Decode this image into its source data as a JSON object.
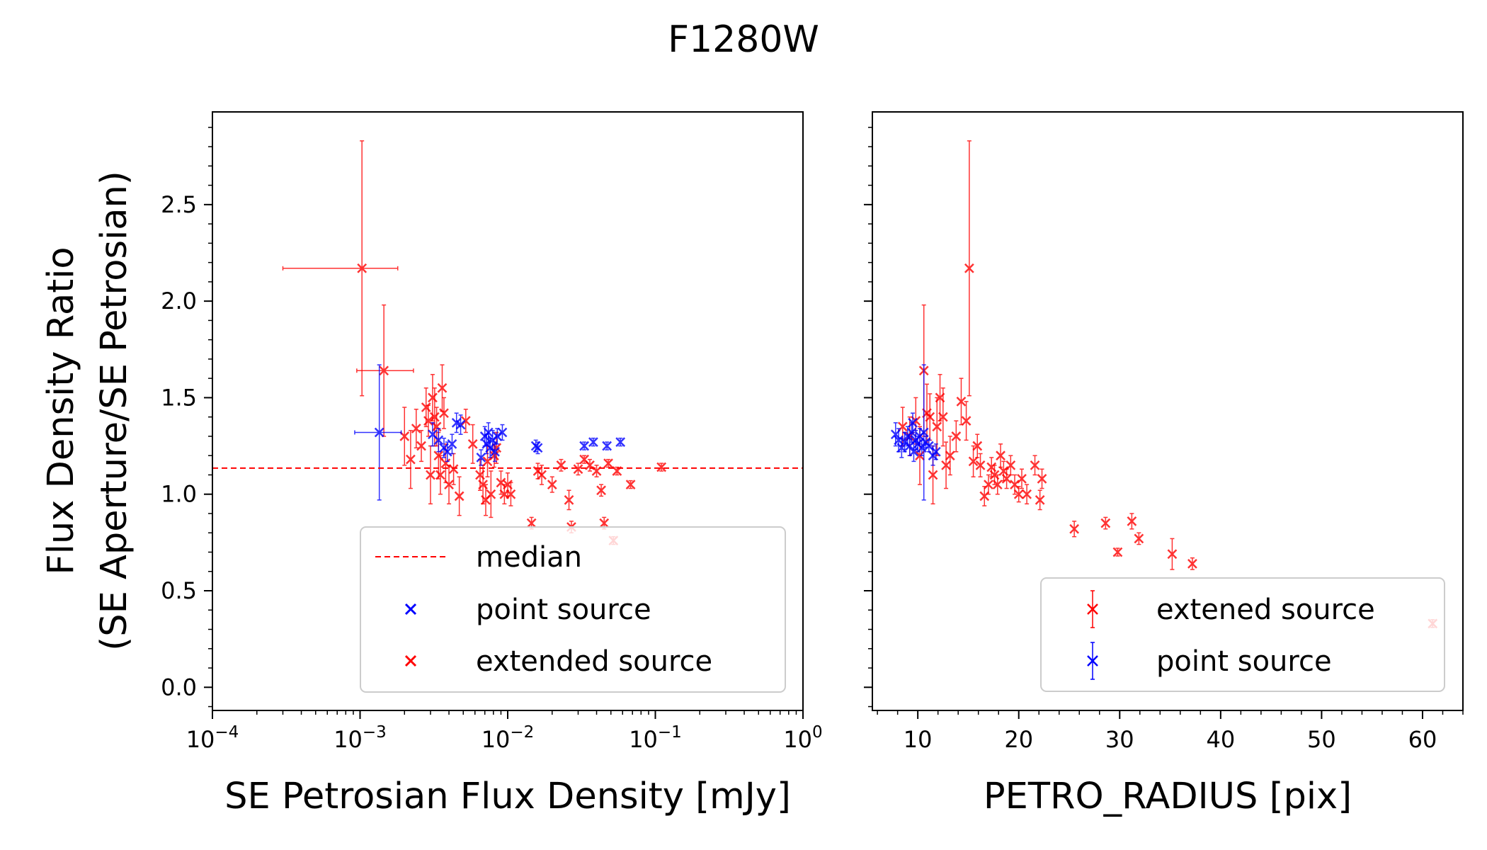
{
  "figure": {
    "title": "F1280W"
  },
  "colors": {
    "extended": "#ff0000",
    "point": "#0000ff",
    "median": "#ff0000",
    "axis": "#000000"
  },
  "chart_data": [
    {
      "type": "scatter",
      "xlabel": "SE Petrosian Flux Density [mJy]",
      "ylabel_line1": "Flux Density Ratio",
      "ylabel_line2": "(SE Aperture/SE Petrosian)",
      "x_scale": "log",
      "xlim": [
        0.0001,
        1
      ],
      "ylim": [
        -0.12,
        2.98
      ],
      "x_ticks": [
        {
          "value": 0.0001,
          "base": "10",
          "exp": "−4"
        },
        {
          "value": 0.001,
          "base": "10",
          "exp": "−3"
        },
        {
          "value": 0.01,
          "base": "10",
          "exp": "−2"
        },
        {
          "value": 0.1,
          "base": "10",
          "exp": "−1"
        },
        {
          "value": 1,
          "base": "10",
          "exp": "0"
        }
      ],
      "y_ticks": [
        "0.0",
        "0.5",
        "1.0",
        "1.5",
        "2.0",
        "2.5"
      ],
      "median": 1.135,
      "legend": {
        "placement": "lower-right",
        "entries": [
          {
            "label": "median",
            "marker": "dashed-line",
            "color": "#ff0000"
          },
          {
            "label": "point source",
            "marker": "x",
            "color": "#0000ff"
          },
          {
            "label": "extended source",
            "marker": "x",
            "color": "#ff0000"
          }
        ]
      },
      "series": [
        {
          "name": "point source",
          "color": "#0000ff",
          "points": [
            {
              "x": 0.00135,
              "y": 1.32,
              "yerr": 0.35,
              "xlo": 0.00092,
              "xhi": 0.0019
            },
            {
              "x": 0.0031,
              "y": 1.31,
              "yerr": 0.06
            },
            {
              "x": 0.0034,
              "y": 1.28,
              "yerr": 0.06
            },
            {
              "x": 0.0037,
              "y": 1.24,
              "yerr": 0.05
            },
            {
              "x": 0.0039,
              "y": 1.22,
              "yerr": 0.05
            },
            {
              "x": 0.0042,
              "y": 1.26,
              "yerr": 0.05
            },
            {
              "x": 0.0045,
              "y": 1.37,
              "yerr": 0.05
            },
            {
              "x": 0.0048,
              "y": 1.36,
              "yerr": 0.05
            },
            {
              "x": 0.0066,
              "y": 1.19,
              "yerr": 0.04
            },
            {
              "x": 0.007,
              "y": 1.3,
              "yerr": 0.05
            },
            {
              "x": 0.0072,
              "y": 1.26,
              "yerr": 0.05
            },
            {
              "x": 0.0074,
              "y": 1.32,
              "yerr": 0.05
            },
            {
              "x": 0.0076,
              "y": 1.24,
              "yerr": 0.05
            },
            {
              "x": 0.0079,
              "y": 1.28,
              "yerr": 0.05
            },
            {
              "x": 0.0082,
              "y": 1.22,
              "yerr": 0.05
            },
            {
              "x": 0.0085,
              "y": 1.3,
              "yerr": 0.04
            },
            {
              "x": 0.0092,
              "y": 1.32,
              "yerr": 0.04
            },
            {
              "x": 0.0155,
              "y": 1.25,
              "yerr": 0.03
            },
            {
              "x": 0.016,
              "y": 1.24,
              "yerr": 0.03
            },
            {
              "x": 0.033,
              "y": 1.25,
              "yerr": 0.02
            },
            {
              "x": 0.038,
              "y": 1.27,
              "yerr": 0.02
            },
            {
              "x": 0.047,
              "y": 1.25,
              "yerr": 0.02
            },
            {
              "x": 0.058,
              "y": 1.27,
              "yerr": 0.02
            }
          ]
        },
        {
          "name": "extended source",
          "color": "#ff0000",
          "points": [
            {
              "x": 0.00103,
              "y": 2.17,
              "yerr": 0.66,
              "xlo": 0.0003,
              "xhi": 0.0018
            },
            {
              "x": 0.00145,
              "y": 1.64,
              "yerr": 0.34,
              "xlo": 0.00095,
              "xhi": 0.0023
            },
            {
              "x": 0.002,
              "y": 1.3,
              "yerr": 0.15
            },
            {
              "x": 0.0022,
              "y": 1.18,
              "yerr": 0.15
            },
            {
              "x": 0.0024,
              "y": 1.34,
              "yerr": 0.1
            },
            {
              "x": 0.0026,
              "y": 1.25,
              "yerr": 0.08
            },
            {
              "x": 0.0028,
              "y": 1.45,
              "yerr": 0.1
            },
            {
              "x": 0.0029,
              "y": 1.38,
              "yerr": 0.08
            },
            {
              "x": 0.003,
              "y": 1.1,
              "yerr": 0.15
            },
            {
              "x": 0.0031,
              "y": 1.5,
              "yerr": 0.12
            },
            {
              "x": 0.0032,
              "y": 1.4,
              "yerr": 0.15
            },
            {
              "x": 0.0033,
              "y": 1.35,
              "yerr": 0.1
            },
            {
              "x": 0.0034,
              "y": 1.2,
              "yerr": 0.12
            },
            {
              "x": 0.0035,
              "y": 1.1,
              "yerr": 0.1
            },
            {
              "x": 0.0036,
              "y": 1.55,
              "yerr": 0.12
            },
            {
              "x": 0.0037,
              "y": 1.42,
              "yerr": 0.08
            },
            {
              "x": 0.0038,
              "y": 1.16,
              "yerr": 0.1
            },
            {
              "x": 0.004,
              "y": 1.05,
              "yerr": 0.1
            },
            {
              "x": 0.0043,
              "y": 1.13,
              "yerr": 0.08
            },
            {
              "x": 0.0047,
              "y": 0.99,
              "yerr": 0.1
            },
            {
              "x": 0.0052,
              "y": 1.38,
              "yerr": 0.06
            },
            {
              "x": 0.0058,
              "y": 1.26,
              "yerr": 0.1
            },
            {
              "x": 0.0065,
              "y": 1.1,
              "yerr": 0.08
            },
            {
              "x": 0.0068,
              "y": 1.05,
              "yerr": 0.1
            },
            {
              "x": 0.0071,
              "y": 0.97,
              "yerr": 0.08
            },
            {
              "x": 0.0073,
              "y": 1.17,
              "yerr": 0.08
            },
            {
              "x": 0.0077,
              "y": 1.0,
              "yerr": 0.12
            },
            {
              "x": 0.0081,
              "y": 1.2,
              "yerr": 0.06
            },
            {
              "x": 0.0084,
              "y": 1.24,
              "yerr": 0.08
            },
            {
              "x": 0.009,
              "y": 1.06,
              "yerr": 0.06
            },
            {
              "x": 0.0095,
              "y": 1.0,
              "yerr": 0.05
            },
            {
              "x": 0.01,
              "y": 1.05,
              "yerr": 0.06
            },
            {
              "x": 0.0105,
              "y": 1.0,
              "yerr": 0.06
            },
            {
              "x": 0.0145,
              "y": 0.85,
              "yerr": 0.03
            },
            {
              "x": 0.016,
              "y": 1.12,
              "yerr": 0.04
            },
            {
              "x": 0.017,
              "y": 1.1,
              "yerr": 0.05
            },
            {
              "x": 0.02,
              "y": 1.05,
              "yerr": 0.04
            },
            {
              "x": 0.023,
              "y": 1.15,
              "yerr": 0.03
            },
            {
              "x": 0.026,
              "y": 0.97,
              "yerr": 0.05
            },
            {
              "x": 0.027,
              "y": 0.83,
              "yerr": 0.03
            },
            {
              "x": 0.03,
              "y": 1.13,
              "yerr": 0.03
            },
            {
              "x": 0.033,
              "y": 1.18,
              "yerr": 0.02
            },
            {
              "x": 0.036,
              "y": 1.15,
              "yerr": 0.03
            },
            {
              "x": 0.04,
              "y": 1.12,
              "yerr": 0.03
            },
            {
              "x": 0.043,
              "y": 1.02,
              "yerr": 0.03
            },
            {
              "x": 0.045,
              "y": 0.85,
              "yerr": 0.03
            },
            {
              "x": 0.048,
              "y": 1.16,
              "yerr": 0.02
            },
            {
              "x": 0.055,
              "y": 1.12,
              "yerr": 0.02
            },
            {
              "x": 0.068,
              "y": 1.05,
              "yerr": 0.02
            },
            {
              "x": 0.11,
              "y": 1.14,
              "yerr": 0.02
            },
            {
              "x": 0.052,
              "y": 0.76,
              "yerr": 0.02
            }
          ]
        }
      ]
    },
    {
      "type": "scatter",
      "xlabel": "PETRO_RADIUS [pix]",
      "x_scale": "linear",
      "xlim": [
        5.5,
        64
      ],
      "ylim": [
        -0.12,
        2.98
      ],
      "x_ticks": [
        "10",
        "20",
        "30",
        "40",
        "50",
        "60"
      ],
      "legend": {
        "placement": "lower-right",
        "entries": [
          {
            "label": "extened source",
            "marker": "x-errorbar",
            "color": "#ff0000"
          },
          {
            "label": "point source",
            "marker": "x-errorbar",
            "color": "#0000ff"
          }
        ]
      },
      "series": [
        {
          "name": "extened source",
          "color": "#ff0000",
          "points": [
            {
              "x": 8.5,
              "y": 1.35,
              "yerr": 0.1
            },
            {
              "x": 9.2,
              "y": 1.3,
              "yerr": 0.1
            },
            {
              "x": 9.8,
              "y": 1.38,
              "yerr": 0.12
            },
            {
              "x": 10.2,
              "y": 1.2,
              "yerr": 0.15
            },
            {
              "x": 10.6,
              "y": 1.64,
              "yerr": 0.34
            },
            {
              "x": 10.9,
              "y": 1.42,
              "yerr": 0.15
            },
            {
              "x": 11.2,
              "y": 1.4,
              "yerr": 0.12
            },
            {
              "x": 11.5,
              "y": 1.1,
              "yerr": 0.15
            },
            {
              "x": 11.9,
              "y": 1.35,
              "yerr": 0.15
            },
            {
              "x": 12.2,
              "y": 1.5,
              "yerr": 0.12
            },
            {
              "x": 12.5,
              "y": 1.4,
              "yerr": 0.15
            },
            {
              "x": 12.8,
              "y": 1.15,
              "yerr": 0.12
            },
            {
              "x": 13.2,
              "y": 1.2,
              "yerr": 0.1
            },
            {
              "x": 13.8,
              "y": 1.3,
              "yerr": 0.08
            },
            {
              "x": 14.3,
              "y": 1.48,
              "yerr": 0.12
            },
            {
              "x": 14.8,
              "y": 1.38,
              "yerr": 0.1
            },
            {
              "x": 15.1,
              "y": 2.17,
              "yerr": 0.66
            },
            {
              "x": 15.5,
              "y": 1.17,
              "yerr": 0.08
            },
            {
              "x": 15.9,
              "y": 1.25,
              "yerr": 0.06
            },
            {
              "x": 16.2,
              "y": 1.15,
              "yerr": 0.06
            },
            {
              "x": 16.6,
              "y": 0.99,
              "yerr": 0.05
            },
            {
              "x": 17.0,
              "y": 1.05,
              "yerr": 0.05
            },
            {
              "x": 17.3,
              "y": 1.14,
              "yerr": 0.05
            },
            {
              "x": 17.6,
              "y": 1.1,
              "yerr": 0.05
            },
            {
              "x": 17.9,
              "y": 1.05,
              "yerr": 0.05
            },
            {
              "x": 18.2,
              "y": 1.2,
              "yerr": 0.06
            },
            {
              "x": 18.5,
              "y": 1.12,
              "yerr": 0.05
            },
            {
              "x": 18.8,
              "y": 1.08,
              "yerr": 0.05
            },
            {
              "x": 19.2,
              "y": 1.15,
              "yerr": 0.05
            },
            {
              "x": 19.6,
              "y": 1.05,
              "yerr": 0.05
            },
            {
              "x": 20.0,
              "y": 1.0,
              "yerr": 0.04
            },
            {
              "x": 20.3,
              "y": 1.08,
              "yerr": 0.05
            },
            {
              "x": 20.8,
              "y": 1.0,
              "yerr": 0.05
            },
            {
              "x": 21.6,
              "y": 1.15,
              "yerr": 0.05
            },
            {
              "x": 22.1,
              "y": 0.97,
              "yerr": 0.05
            },
            {
              "x": 22.3,
              "y": 1.08,
              "yerr": 0.05
            },
            {
              "x": 25.5,
              "y": 0.82,
              "yerr": 0.04
            },
            {
              "x": 28.6,
              "y": 0.85,
              "yerr": 0.03
            },
            {
              "x": 29.8,
              "y": 0.7,
              "yerr": 0.02
            },
            {
              "x": 31.2,
              "y": 0.86,
              "yerr": 0.04
            },
            {
              "x": 31.9,
              "y": 0.77,
              "yerr": 0.03
            },
            {
              "x": 35.2,
              "y": 0.69,
              "yerr": 0.08
            },
            {
              "x": 37.2,
              "y": 0.64,
              "yerr": 0.03
            },
            {
              "x": 61.0,
              "y": 0.33,
              "yerr": 0.02
            }
          ]
        },
        {
          "name": "point source",
          "color": "#0000ff",
          "points": [
            {
              "x": 7.8,
              "y": 1.31,
              "yerr": 0.06
            },
            {
              "x": 8.1,
              "y": 1.28,
              "yerr": 0.06
            },
            {
              "x": 8.4,
              "y": 1.24,
              "yerr": 0.05
            },
            {
              "x": 8.7,
              "y": 1.27,
              "yerr": 0.05
            },
            {
              "x": 9.0,
              "y": 1.3,
              "yerr": 0.05
            },
            {
              "x": 9.2,
              "y": 1.25,
              "yerr": 0.05
            },
            {
              "x": 9.4,
              "y": 1.32,
              "yerr": 0.05
            },
            {
              "x": 9.6,
              "y": 1.22,
              "yerr": 0.05
            },
            {
              "x": 9.8,
              "y": 1.28,
              "yerr": 0.05
            },
            {
              "x": 10.0,
              "y": 1.26,
              "yerr": 0.04
            },
            {
              "x": 10.2,
              "y": 1.3,
              "yerr": 0.04
            },
            {
              "x": 10.4,
              "y": 1.24,
              "yerr": 0.04
            },
            {
              "x": 10.8,
              "y": 1.27,
              "yerr": 0.03
            },
            {
              "x": 11.1,
              "y": 1.25,
              "yerr": 0.03
            },
            {
              "x": 11.5,
              "y": 1.2,
              "yerr": 0.05
            },
            {
              "x": 11.8,
              "y": 1.22,
              "yerr": 0.04
            },
            {
              "x": 9.5,
              "y": 1.37,
              "yerr": 0.05
            },
            {
              "x": 10.6,
              "y": 1.32,
              "yerr": 0.35
            }
          ]
        }
      ]
    }
  ]
}
